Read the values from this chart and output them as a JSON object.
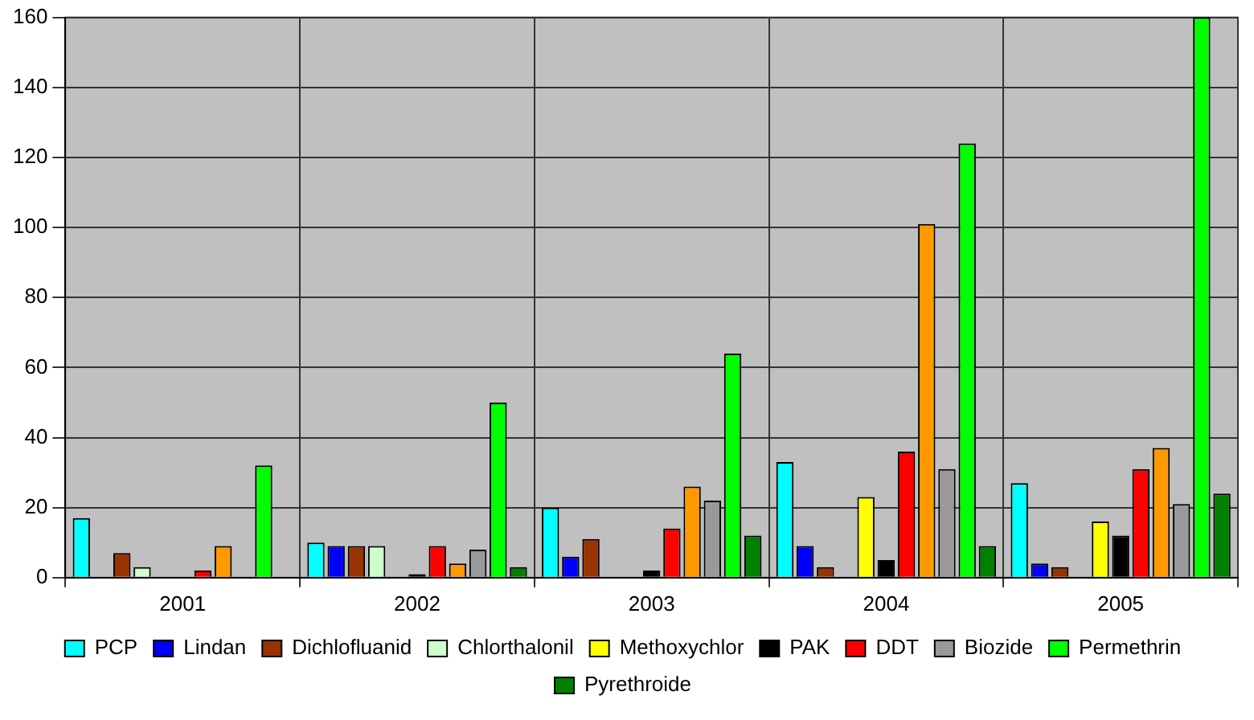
{
  "chart_data": {
    "type": "bar",
    "categories": [
      "2001",
      "2002",
      "2003",
      "2004",
      "2005"
    ],
    "series": [
      {
        "name": "PCP",
        "color": "#00ffff",
        "values": [
          17,
          10,
          20,
          33,
          27
        ]
      },
      {
        "name": "Lindan",
        "color": "#0000ff",
        "values": [
          0,
          9,
          6,
          9,
          4
        ]
      },
      {
        "name": "Dichlofluanid",
        "color": "#993300",
        "values": [
          7,
          9,
          11,
          3,
          3
        ]
      },
      {
        "name": "Chlorthalonil",
        "color": "#ccffcc",
        "values": [
          3,
          9,
          0,
          0,
          0
        ]
      },
      {
        "name": "Methoxychlor",
        "color": "#ffff00",
        "values": [
          0,
          0,
          0,
          23,
          16
        ]
      },
      {
        "name": "PAK",
        "color": "#000000",
        "values": [
          0,
          1,
          2,
          5,
          12
        ]
      },
      {
        "name": "DDT",
        "color": "#ff0000",
        "values": [
          2,
          9,
          14,
          36,
          31
        ]
      },
      {
        "color": "#ff9900",
        "values": [
          9,
          4,
          26,
          101,
          37
        ]
      },
      {
        "name": "Biozide",
        "color": "#999999",
        "values": [
          0,
          8,
          22,
          31,
          21
        ]
      },
      {
        "name": "Permethrin",
        "color": "#00ff00",
        "values": [
          32,
          50,
          64,
          124,
          160
        ]
      },
      {
        "name": "Pyrethroide",
        "color": "#008000",
        "values": [
          0,
          3,
          12,
          9,
          24
        ]
      }
    ],
    "ylim": [
      0,
      160
    ],
    "yticks": [
      0,
      20,
      40,
      60,
      80,
      100,
      120,
      140,
      160
    ],
    "grid": true,
    "legend": "bottom"
  }
}
